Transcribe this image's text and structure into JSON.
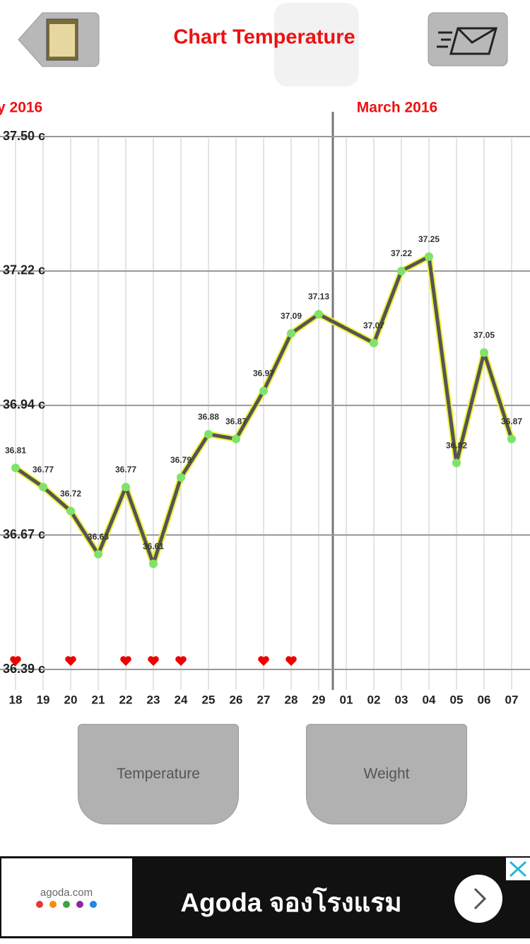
{
  "header": {
    "title": "Chart Temperature"
  },
  "chart_data": {
    "type": "line",
    "months": [
      "y 2016",
      "March 2016"
    ],
    "categories": [
      "18",
      "19",
      "20",
      "21",
      "22",
      "23",
      "24",
      "25",
      "26",
      "27",
      "28",
      "29",
      "01",
      "02",
      "03",
      "04",
      "05",
      "06",
      "07"
    ],
    "x": [
      "18",
      "19",
      "20",
      "21",
      "22",
      "23",
      "24",
      "25",
      "26",
      "27",
      "28",
      "29",
      "02",
      "03",
      "04",
      "05",
      "06",
      "07"
    ],
    "series": [
      {
        "name": "Temperature",
        "color": "#555555",
        "values": [
          36.81,
          36.77,
          36.72,
          36.63,
          36.77,
          36.61,
          36.79,
          36.88,
          36.87,
          36.97,
          37.09,
          37.13,
          37.07,
          37.22,
          37.25,
          36.82,
          37.05,
          36.87
        ]
      }
    ],
    "heart_days": [
      "18",
      "20",
      "22",
      "23",
      "24",
      "27",
      "28"
    ],
    "ylim": [
      36.39,
      37.5
    ],
    "yticks": [
      {
        "value": 37.5,
        "label": "37.50 c"
      },
      {
        "value": 37.22,
        "label": "37.22 c"
      },
      {
        "value": 36.94,
        "label": "36.94 c"
      },
      {
        "value": 36.67,
        "label": "36.67 c"
      },
      {
        "value": 36.39,
        "label": "36.39 c"
      }
    ],
    "grid": true
  },
  "buttons": [
    "Temperature",
    "Weight"
  ],
  "ad": {
    "site": "agoda.com",
    "text": "Agoda จองโรงแรม"
  }
}
